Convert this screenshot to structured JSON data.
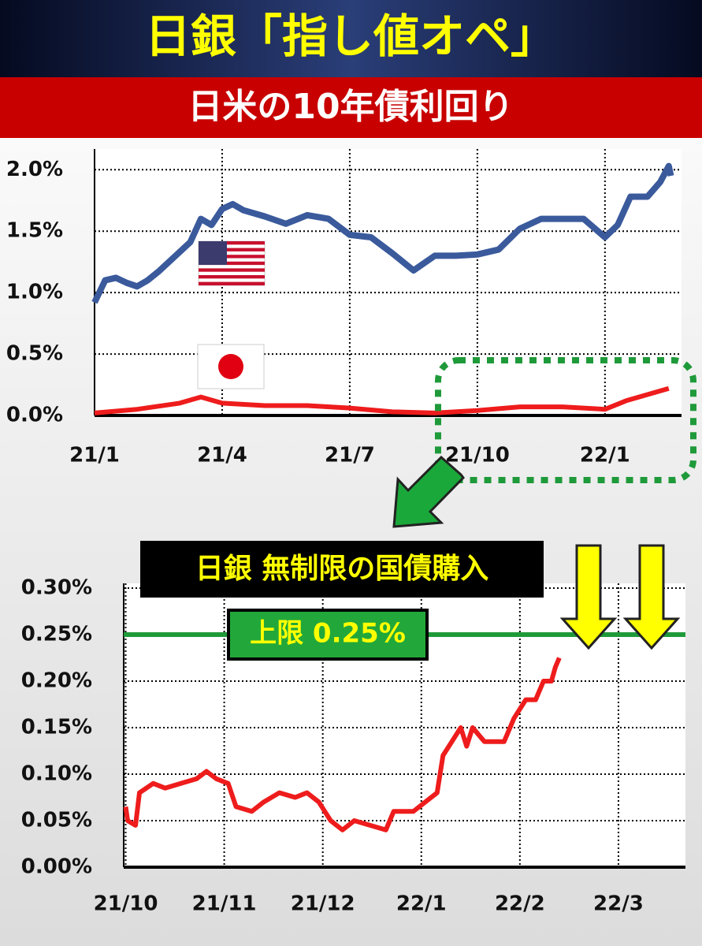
{
  "header": {
    "title": "日銀「指し値オペ」",
    "subtitle": "日米の10年債利回り"
  },
  "chart_data": [
    {
      "type": "line",
      "grid": true,
      "xlim": [
        0,
        13.8
      ],
      "xticks": [
        {
          "value": 0,
          "label": "21/1"
        },
        {
          "value": 3,
          "label": "21/4"
        },
        {
          "value": 6,
          "label": "21/7"
        },
        {
          "value": 9,
          "label": "21/10"
        },
        {
          "value": 12,
          "label": "22/1"
        }
      ],
      "ylim": [
        0,
        2.13
      ],
      "yticks": [
        {
          "value": 0,
          "label": "0.0%"
        },
        {
          "value": 0.5,
          "label": "0.5%"
        },
        {
          "value": 1,
          "label": "1.0%"
        },
        {
          "value": 1.5,
          "label": "1.5%"
        },
        {
          "value": 2,
          "label": "2.0%"
        }
      ],
      "series": [
        {
          "color": "#3a5a9c",
          "x": [
            0,
            0.25,
            0.5,
            0.75,
            1,
            1.25,
            1.5,
            2,
            2.25,
            2.5,
            2.75,
            3,
            3.25,
            3.5,
            4,
            4.5,
            5,
            5.5,
            6,
            6.5,
            7,
            7.5,
            8,
            8.5,
            9,
            9.5,
            10,
            10.5,
            11,
            11.5,
            12,
            12.3,
            12.6,
            13,
            13.3,
            13.5,
            13.55
          ],
          "values": [
            0.92,
            1.1,
            1.12,
            1.08,
            1.05,
            1.1,
            1.17,
            1.33,
            1.41,
            1.6,
            1.55,
            1.68,
            1.72,
            1.67,
            1.62,
            1.56,
            1.63,
            1.6,
            1.47,
            1.45,
            1.32,
            1.18,
            1.3,
            1.3,
            1.31,
            1.35,
            1.52,
            1.6,
            1.6,
            1.6,
            1.45,
            1.55,
            1.78,
            1.78,
            1.9,
            2.03,
            1.95
          ]
        },
        {
          "color": "#ee1c1c",
          "x": [
            0,
            1,
            2,
            2.5,
            3,
            4,
            5,
            6,
            7,
            8,
            9,
            10,
            11,
            12,
            12.5,
            13,
            13.5
          ],
          "values": [
            0.02,
            0.05,
            0.1,
            0.15,
            0.1,
            0.08,
            0.08,
            0.06,
            0.03,
            0.02,
            0.04,
            0.07,
            0.07,
            0.05,
            0.12,
            0.17,
            0.22
          ]
        }
      ]
    },
    {
      "type": "line",
      "grid": true,
      "xlim": [
        -0.02,
        5.68
      ],
      "xticks": [
        {
          "value": 0,
          "label": "21/10"
        },
        {
          "value": 1,
          "label": "21/11"
        },
        {
          "value": 2,
          "label": "21/12"
        },
        {
          "value": 3,
          "label": "22/1"
        },
        {
          "value": 4,
          "label": "22/2"
        },
        {
          "value": 5,
          "label": "22/3"
        }
      ],
      "ylim": [
        0,
        0.3
      ],
      "yticks": [
        {
          "value": 0,
          "label": "0.00%"
        },
        {
          "value": 0.05,
          "label": "0.05%"
        },
        {
          "value": 0.1,
          "label": "0.10%"
        },
        {
          "value": 0.15,
          "label": "0.15%"
        },
        {
          "value": 0.2,
          "label": "0.20%"
        },
        {
          "value": 0.25,
          "label": "0.25%"
        },
        {
          "value": 0.3,
          "label": "0.30%"
        }
      ],
      "reference_line": {
        "value": 0.25,
        "label": "上限 0.25%",
        "color": "#1f9a3a"
      },
      "annotation": "日銀  無制限の国債購入",
      "series": [
        {
          "color": "#ee1c1c",
          "x": [
            0,
            0.02,
            0.1,
            0.14,
            0.28,
            0.4,
            0.56,
            0.72,
            0.82,
            0.92,
            1.04,
            1.12,
            1.28,
            1.4,
            1.56,
            1.72,
            1.84,
            1.96,
            2.08,
            2.2,
            2.32,
            2.48,
            2.64,
            2.72,
            2.92,
            3.04,
            3.16,
            3.22,
            3.34,
            3.4,
            3.46,
            3.52,
            3.64,
            3.84,
            3.94,
            4.06,
            4.16,
            4.24,
            4.32,
            4.36,
            4.4
          ],
          "values": [
            0.065,
            0.05,
            0.045,
            0.08,
            0.09,
            0.085,
            0.09,
            0.095,
            0.103,
            0.095,
            0.09,
            0.065,
            0.06,
            0.07,
            0.08,
            0.075,
            0.08,
            0.07,
            0.05,
            0.04,
            0.05,
            0.045,
            0.04,
            0.06,
            0.06,
            0.07,
            0.08,
            0.12,
            0.14,
            0.15,
            0.13,
            0.15,
            0.135,
            0.135,
            0.16,
            0.18,
            0.18,
            0.2,
            0.2,
            0.215,
            0.225
          ]
        }
      ]
    }
  ]
}
